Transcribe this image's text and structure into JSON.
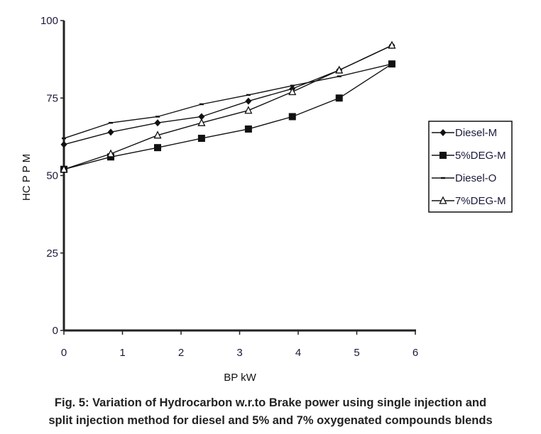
{
  "chart_data": {
    "type": "line",
    "title": "",
    "xlabel": "BP kW",
    "ylabel": "HC P P M",
    "xlim": [
      0,
      6
    ],
    "ylim": [
      0,
      100
    ],
    "xticks": [
      0,
      1,
      2,
      3,
      4,
      5,
      6
    ],
    "yticks": [
      0,
      25,
      50,
      75,
      100
    ],
    "grid": false,
    "legend_position": "right",
    "series": [
      {
        "name": "Diesel-M",
        "marker": "diamond",
        "x": [
          0,
          0.8,
          1.6,
          2.35,
          3.15,
          3.9,
          4.7,
          5.6
        ],
        "y": [
          60,
          64,
          67,
          69,
          74,
          78,
          84,
          92
        ]
      },
      {
        "name": "5%DEG-M",
        "marker": "square",
        "x": [
          0,
          0.8,
          1.6,
          2.35,
          3.15,
          3.9,
          4.7,
          5.6
        ],
        "y": [
          52,
          56,
          59,
          62,
          65,
          69,
          75,
          86
        ]
      },
      {
        "name": "Diesel-O",
        "marker": "dash",
        "x": [
          0,
          0.8,
          1.6,
          2.35,
          3.15,
          3.9,
          4.7,
          5.6
        ],
        "y": [
          62,
          67,
          69,
          73,
          76,
          79,
          82,
          86
        ]
      },
      {
        "name": "7%DEG-M",
        "marker": "triangle-open",
        "x": [
          0,
          0.8,
          1.6,
          2.35,
          3.15,
          3.9,
          4.7,
          5.6
        ],
        "y": [
          52,
          57,
          63,
          67,
          71,
          77,
          84,
          92
        ]
      }
    ]
  },
  "caption": {
    "line1": "Fig. 5: Variation of Hydrocarbon w.r.to Brake power using single injection and",
    "line2": "split injection method for diesel and 5% and 7% oxygenated compounds blends"
  }
}
